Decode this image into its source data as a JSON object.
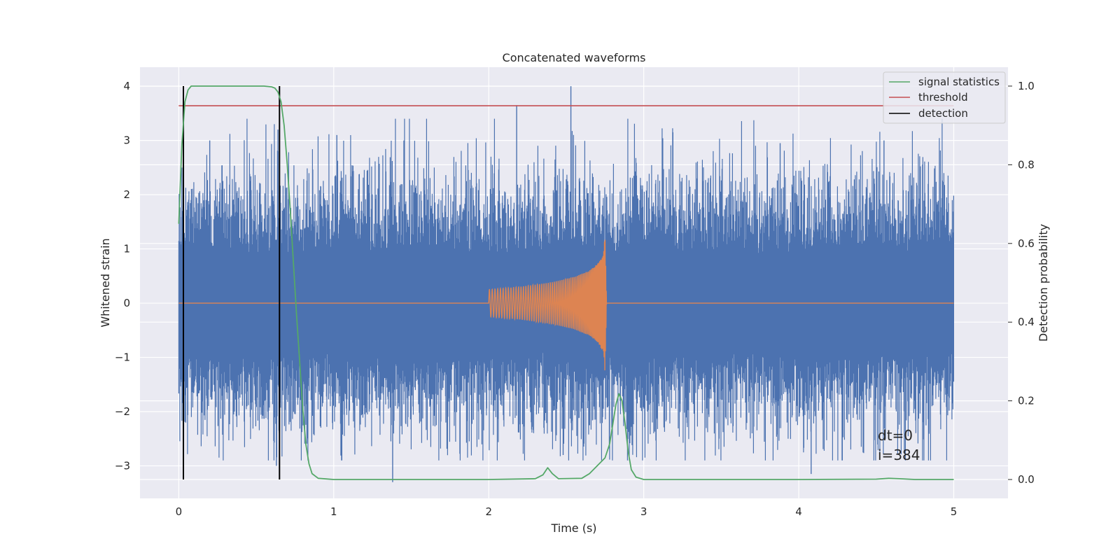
{
  "chart_data": {
    "type": "line",
    "title": "Concatenated waveforms",
    "xlabel": "Time (s)",
    "ylabel": "Whitened strain",
    "y2label": "Detection probability",
    "xlim": [
      -0.25,
      5.35
    ],
    "ylim": [
      -3.6,
      4.35
    ],
    "y2lim": [
      -0.048,
      1.048
    ],
    "xticks": [
      0,
      1,
      2,
      3,
      4,
      5
    ],
    "xtick_labels": [
      "0",
      "1",
      "2",
      "3",
      "4",
      "5"
    ],
    "yticks": [
      -3,
      -2,
      -1,
      0,
      1,
      2,
      3,
      4
    ],
    "ytick_labels": [
      "−3",
      "−2",
      "−1",
      "0",
      "1",
      "2",
      "3",
      "4"
    ],
    "y2ticks": [
      0,
      0.2,
      0.4,
      0.6,
      0.8,
      1.0
    ],
    "y2tick_labels": [
      "0.0",
      "0.2",
      "0.4",
      "0.6",
      "0.8",
      "1.0"
    ],
    "grid": true,
    "legend_position": "top-right",
    "legend": [
      {
        "label": "signal statistics",
        "color": "#55a868"
      },
      {
        "label": "threshold",
        "color": "#c44e52"
      },
      {
        "label": "detection",
        "color": "#000000"
      }
    ],
    "colors": {
      "noise": "#4c72b0",
      "injected_signal": "#dd8452",
      "signal_statistics": "#55a868",
      "threshold": "#c44e52",
      "detection": "#000000",
      "background": "#eaeaf2",
      "grid": "#ffffff"
    },
    "noise": {
      "t_start": 0,
      "t_end": 5,
      "envelope_min": -2.3,
      "envelope_max": 2.3,
      "peak_max": 4.0,
      "peak_min": -3.3
    },
    "injected_signal": {
      "t_start": 2.0,
      "t_end": 2.76,
      "points": [
        [
          2.0,
          0.25
        ],
        [
          2.2,
          0.3
        ],
        [
          2.4,
          0.38
        ],
        [
          2.55,
          0.48
        ],
        [
          2.65,
          0.6
        ],
        [
          2.7,
          0.72
        ],
        [
          2.74,
          0.9
        ],
        [
          2.75,
          1.3
        ],
        [
          2.76,
          0.03
        ]
      ]
    },
    "threshold": {
      "value": 0.95,
      "t_start": 0,
      "t_end": 5
    },
    "detections": [
      0.03,
      0.65
    ],
    "signal_statistics": {
      "x": [
        0,
        0.02,
        0.04,
        0.06,
        0.08,
        0.1,
        0.2,
        0.4,
        0.55,
        0.6,
        0.62,
        0.64,
        0.66,
        0.68,
        0.7,
        0.72,
        0.74,
        0.76,
        0.78,
        0.8,
        0.82,
        0.84,
        0.86,
        0.9,
        1.0,
        2.0,
        2.3,
        2.35,
        2.38,
        2.41,
        2.45,
        2.6,
        2.65,
        2.7,
        2.75,
        2.78,
        2.8,
        2.82,
        2.84,
        2.86,
        2.88,
        2.9,
        2.92,
        2.95,
        3.0,
        3.5,
        4.0,
        4.5,
        4.58,
        4.65,
        4.75,
        5.0
      ],
      "y": [
        0.65,
        0.85,
        0.96,
        0.99,
        1.0,
        1.0,
        1.0,
        1.0,
        1.0,
        0.998,
        0.995,
        0.985,
        0.96,
        0.9,
        0.8,
        0.68,
        0.55,
        0.42,
        0.3,
        0.18,
        0.09,
        0.04,
        0.015,
        0.003,
        0.0,
        0.0,
        0.002,
        0.012,
        0.03,
        0.015,
        0.002,
        0.003,
        0.015,
        0.035,
        0.055,
        0.09,
        0.14,
        0.19,
        0.218,
        0.2,
        0.14,
        0.07,
        0.025,
        0.006,
        0.0,
        0.0,
        0.0,
        0.001,
        0.003,
        0.002,
        0.0,
        0.0
      ]
    },
    "annotations": [
      "dt=0",
      "i=384"
    ]
  }
}
